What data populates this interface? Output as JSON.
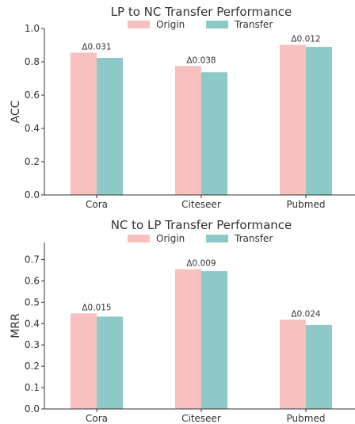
{
  "chart_data": [
    {
      "type": "bar",
      "title": "LP to NC Transfer Performance",
      "xlabel": "",
      "ylabel": "ACC",
      "categories": [
        "Cora",
        "Citeseer",
        "Pubmed"
      ],
      "series": [
        {
          "name": "Origin",
          "values": [
            0.855,
            0.775,
            0.902
          ]
        },
        {
          "name": "Transfer",
          "values": [
            0.824,
            0.737,
            0.89
          ]
        }
      ],
      "annotations": [
        "Δ0.031",
        "Δ0.038",
        "Δ0.012"
      ],
      "ylim": [
        0,
        1.0
      ],
      "yticks": [
        "0.0",
        "0.2",
        "0.4",
        "0.6",
        "0.8",
        "1.0"
      ],
      "legend": "top-center",
      "grid": false
    },
    {
      "type": "bar",
      "title": "NC to LP Transfer Performance",
      "xlabel": "",
      "ylabel": "MRR",
      "categories": [
        "Cora",
        "Citeseer",
        "Pubmed"
      ],
      "series": [
        {
          "name": "Origin",
          "values": [
            0.448,
            0.655,
            0.418
          ]
        },
        {
          "name": "Transfer",
          "values": [
            0.433,
            0.646,
            0.394
          ]
        }
      ],
      "annotations": [
        "Δ0.015",
        "Δ0.009",
        "Δ0.024"
      ],
      "ylim": [
        0,
        0.78
      ],
      "yticks": [
        "0.0",
        "0.1",
        "0.2",
        "0.3",
        "0.4",
        "0.5",
        "0.6",
        "0.7"
      ],
      "legend": "top-center",
      "grid": false
    }
  ],
  "colors": {
    "origin": "#f7c1bf",
    "transfer": "#8dc9c6",
    "axis": "#333333",
    "text": "#333333"
  }
}
